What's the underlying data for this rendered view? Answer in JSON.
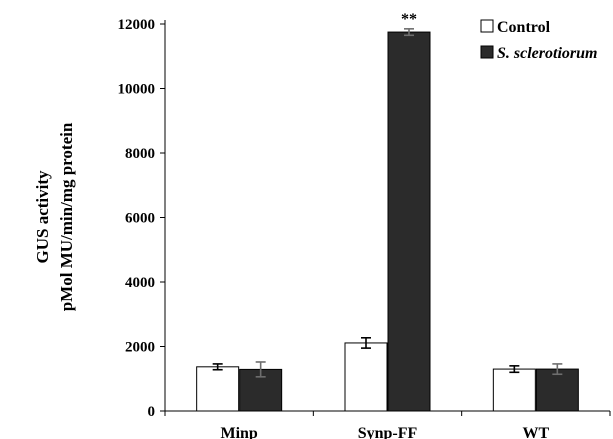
{
  "chart_data": {
    "type": "bar",
    "categories": [
      "Minp",
      "Synp-FF",
      "WT"
    ],
    "series": [
      {
        "name": "Control",
        "color": "#ffffff",
        "stroke": "#000000",
        "values": [
          1370,
          2110,
          1300
        ],
        "errors": [
          90,
          160,
          100
        ]
      },
      {
        "name": "S. sclerotiorum",
        "color": "#2b2b2b",
        "stroke": "#000000",
        "values": [
          1290,
          11750,
          1300
        ],
        "errors": [
          230,
          100,
          160
        ]
      }
    ],
    "ylabel_lines": [
      "GUS activity",
      "pMol MU/min/mg protein"
    ],
    "ylim": [
      0,
      12000
    ],
    "yticks": [
      0,
      2000,
      4000,
      6000,
      8000,
      10000,
      12000
    ],
    "annotations": [
      {
        "category": "Synp-FF",
        "series": 1,
        "text": "**"
      }
    ],
    "legend_position": "top-right",
    "grid": false
  }
}
